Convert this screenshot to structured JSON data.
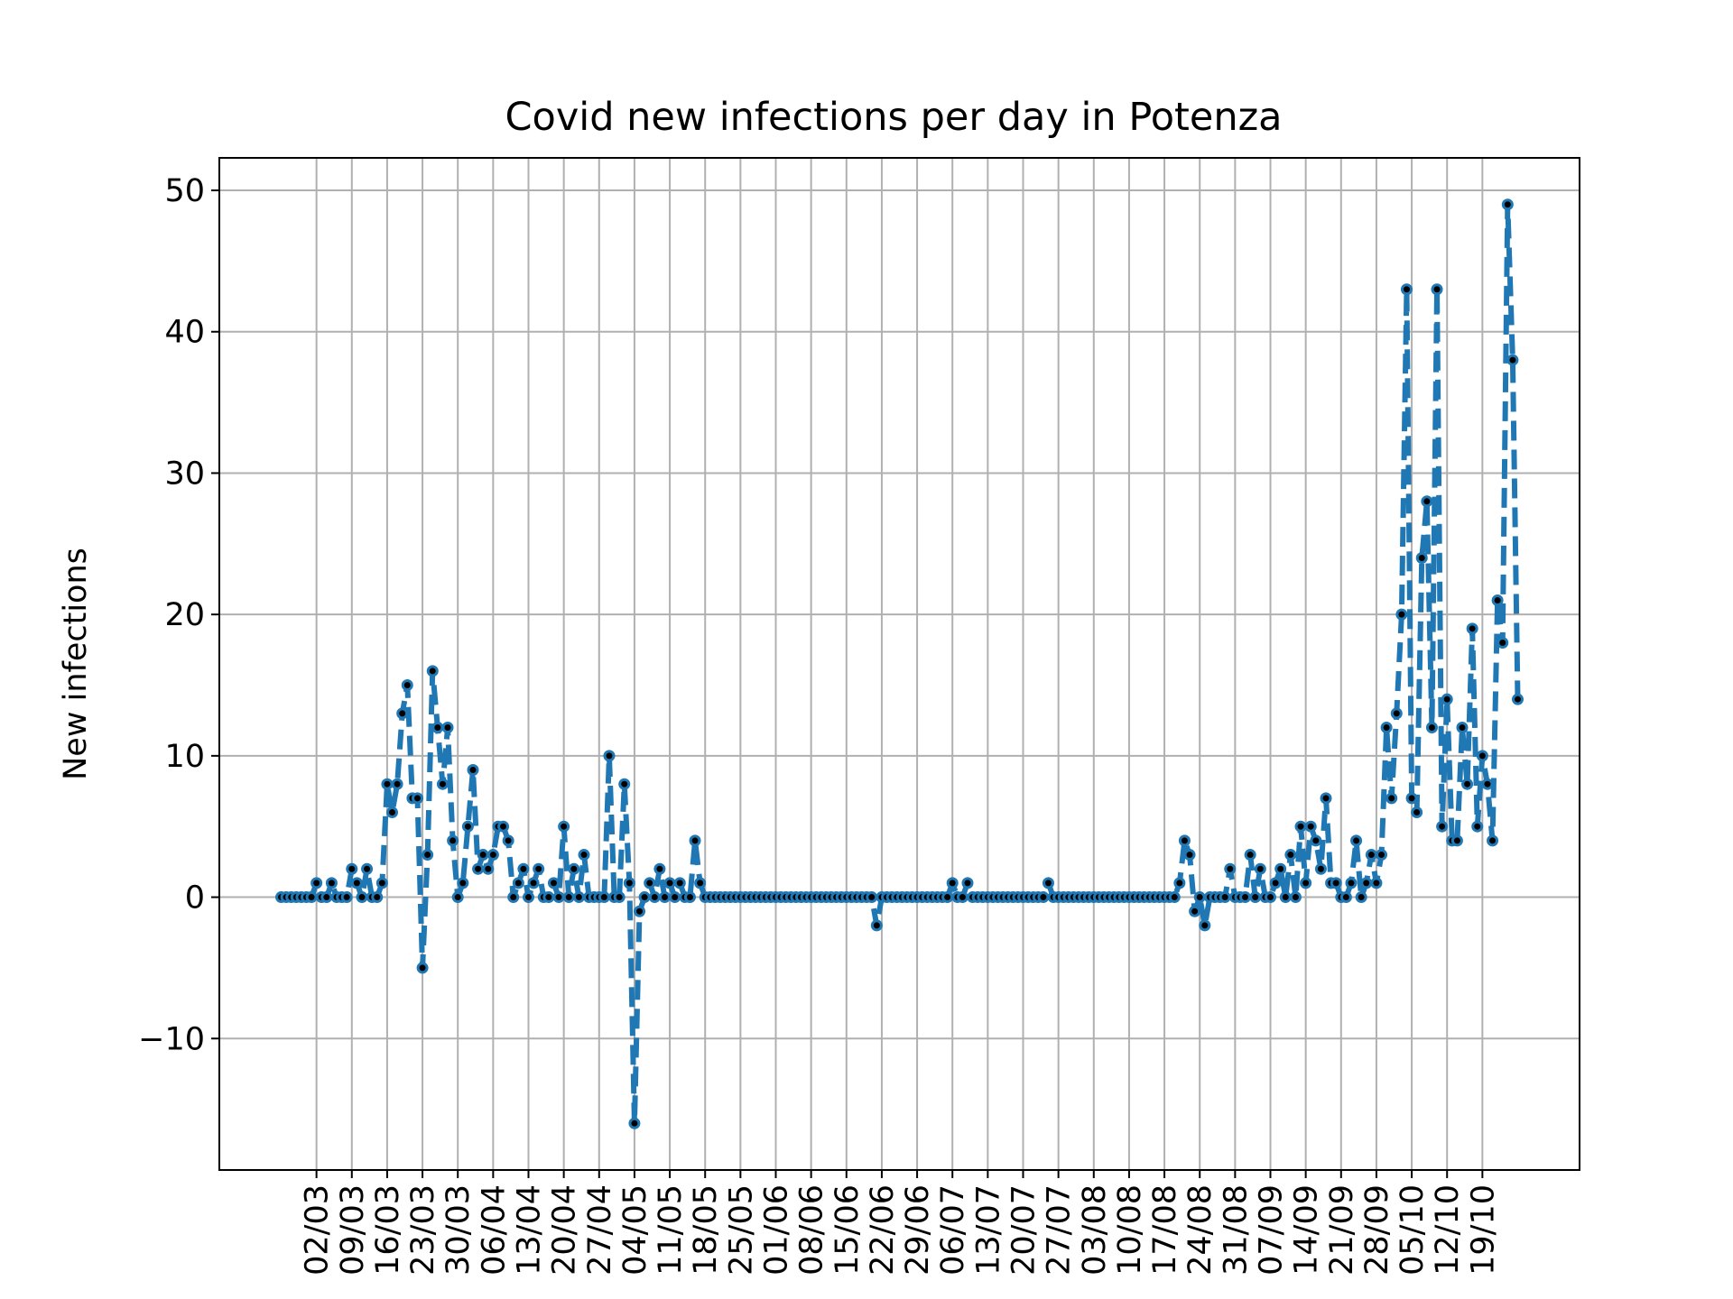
{
  "chart_data": {
    "type": "line",
    "title": "Covid new infections per day in Potenza",
    "xlabel": "",
    "ylabel": "New infections",
    "ylim": [
      -19.3,
      52.3
    ],
    "y_ticks": [
      -10,
      0,
      10,
      20,
      30,
      40,
      50
    ],
    "x_tick_labels": [
      "02/03",
      "09/03",
      "16/03",
      "23/03",
      "30/03",
      "06/04",
      "13/04",
      "20/04",
      "27/04",
      "04/05",
      "11/05",
      "18/05",
      "25/05",
      "01/06",
      "08/06",
      "15/06",
      "22/06",
      "29/06",
      "06/07",
      "13/07",
      "20/07",
      "27/07",
      "03/08",
      "10/08",
      "17/08",
      "24/08",
      "31/08",
      "07/09",
      "14/09",
      "21/09",
      "28/09",
      "05/10",
      "12/10",
      "19/10"
    ],
    "grid": true,
    "start_date": "2020-02-24",
    "colors": {
      "line": "#1f77b4",
      "marker_edge": "#1f77b4",
      "marker_face": "#000000",
      "grid": "#b0b0b0",
      "axes": "#000000"
    },
    "series": [
      {
        "name": "",
        "linestyle": "dashed",
        "values": [
          0,
          0,
          0,
          0,
          0,
          0,
          0,
          1,
          0,
          0,
          1,
          0,
          0,
          0,
          2,
          1,
          0,
          2,
          0,
          0,
          1,
          8,
          6,
          8,
          13,
          15,
          7,
          7,
          -5,
          3,
          16,
          12,
          8,
          12,
          4,
          0,
          1,
          5,
          9,
          2,
          3,
          2,
          3,
          5,
          5,
          4,
          0,
          1,
          2,
          0,
          1,
          2,
          0,
          0,
          1,
          0,
          5,
          0,
          2,
          0,
          3,
          0,
          0,
          0,
          0,
          10,
          0,
          0,
          8,
          1,
          -16,
          -1,
          0,
          1,
          0,
          2,
          0,
          1,
          0,
          1,
          0,
          0,
          4,
          1,
          0,
          0,
          0,
          0,
          0,
          0,
          0,
          0,
          0,
          0,
          0,
          0,
          0,
          0,
          0,
          0,
          0,
          0,
          0,
          0,
          0,
          0,
          0,
          0,
          0,
          0,
          0,
          0,
          0,
          0,
          0,
          0,
          0,
          0,
          -2,
          0,
          0,
          0,
          0,
          0,
          0,
          0,
          0,
          0,
          0,
          0,
          0,
          0,
          0,
          1,
          0,
          0,
          1,
          0,
          0,
          0,
          0,
          0,
          0,
          0,
          0,
          0,
          0,
          0,
          0,
          0,
          0,
          0,
          1,
          0,
          0,
          0,
          0,
          0,
          0,
          0,
          0,
          0,
          0,
          0,
          0,
          0,
          0,
          0,
          0,
          0,
          0,
          0,
          0,
          0,
          0,
          0,
          0,
          0,
          1,
          4,
          3,
          -1,
          0,
          -2,
          0,
          0,
          0,
          0,
          2,
          0,
          0,
          0,
          3,
          0,
          2,
          0,
          0,
          1,
          2,
          0,
          3,
          0,
          5,
          1,
          5,
          4,
          2,
          7,
          1,
          1,
          0,
          0,
          1,
          4,
          0,
          1,
          3,
          1,
          3,
          12,
          7,
          13,
          20,
          43,
          7,
          6,
          24,
          28,
          12,
          43,
          5,
          14,
          4,
          4,
          12,
          8,
          19,
          5,
          10,
          8,
          4,
          21,
          18,
          49,
          38,
          14
        ]
      }
    ]
  }
}
